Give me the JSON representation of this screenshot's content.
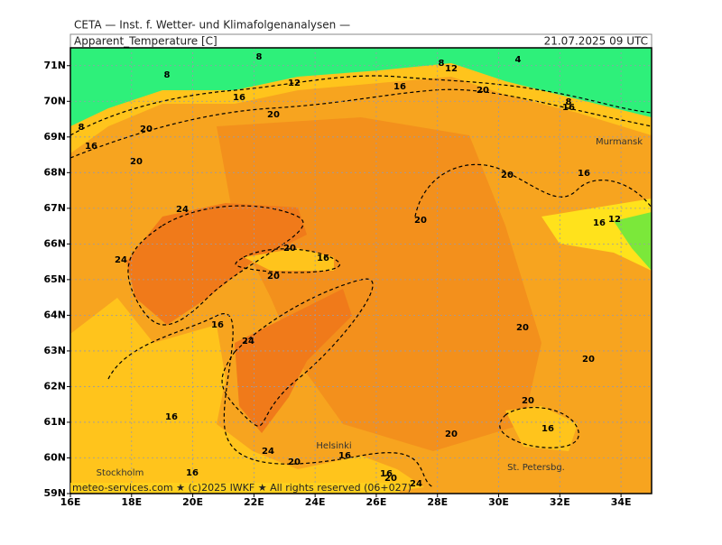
{
  "header": {
    "agency": "CETA — Inst. f. Wetter- und Klimafolgenanalysen —",
    "variable": "Apparent_Temperature [C]",
    "valid_time": "21.07.2025 09 UTC"
  },
  "map": {
    "lonlim": [
      16,
      35
    ],
    "latlim": [
      59,
      71.5
    ],
    "lon_ticks": [
      {
        "value": 16,
        "label": "16E"
      },
      {
        "value": 18,
        "label": "18E"
      },
      {
        "value": 20,
        "label": "20E"
      },
      {
        "value": 22,
        "label": "22E"
      },
      {
        "value": 24,
        "label": "24E"
      },
      {
        "value": 26,
        "label": "26E"
      },
      {
        "value": 28,
        "label": "28E"
      },
      {
        "value": 30,
        "label": "30E"
      },
      {
        "value": 32,
        "label": "32E"
      },
      {
        "value": 34,
        "label": "34E"
      }
    ],
    "lat_ticks": [
      {
        "value": 59,
        "label": "59N"
      },
      {
        "value": 60,
        "label": "60N"
      },
      {
        "value": 61,
        "label": "61N"
      },
      {
        "value": 62,
        "label": "62N"
      },
      {
        "value": 63,
        "label": "63N"
      },
      {
        "value": 64,
        "label": "64N"
      },
      {
        "value": 65,
        "label": "65N"
      },
      {
        "value": 66,
        "label": "66N"
      },
      {
        "value": 67,
        "label": "67N"
      },
      {
        "value": 68,
        "label": "68N"
      },
      {
        "value": 69,
        "label": "69N"
      },
      {
        "value": 70,
        "label": "70N"
      },
      {
        "value": 71,
        "label": "71N"
      }
    ],
    "contour_labels": [
      8,
      4,
      8,
      12,
      8,
      12,
      16,
      20,
      16,
      8,
      16,
      20,
      8,
      20,
      16,
      20,
      20,
      16,
      24,
      20,
      16,
      12,
      20,
      16,
      24,
      20,
      16,
      24,
      20,
      20,
      20,
      16,
      16,
      20,
      24,
      16,
      20,
      16,
      16,
      20,
      24
    ],
    "cities": [
      "Murmansk",
      "Helsinki",
      "Stockholm",
      "St. Petersbg."
    ]
  },
  "footer": "meteo-services.com ★ (c)2025 IWKF ★ All rights reserved (06+027)"
}
